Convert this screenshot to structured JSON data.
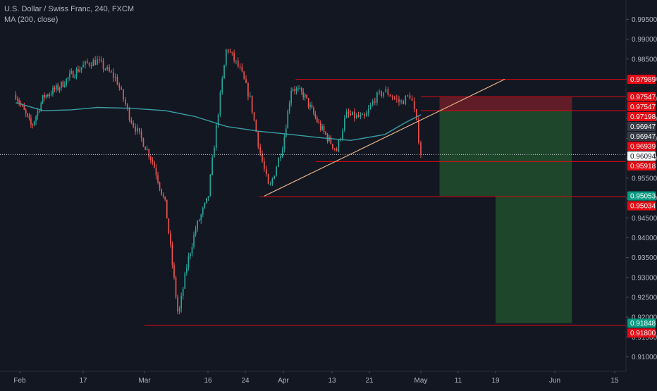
{
  "header": {
    "symbol_line": "U.S. Dollar / Swiss Franc, 240, FXCM",
    "indicator_line": "MA (200, close)"
  },
  "colors": {
    "background": "#131722",
    "bull": "#26a69a",
    "bear": "#ef5350",
    "ma": "#3a9ea5",
    "level_line": "#e50914",
    "trendline": "#e8b38a",
    "stop_zone": "#6e1f28",
    "target_zone": "#1f4b2c",
    "axis_text": "#b2b5be",
    "current_price_bg": "#ffffff"
  },
  "chart_data": {
    "type": "candlestick",
    "title": "U.S. Dollar / Swiss Franc, 240, FXCM",
    "indicator": "MA (200, close)",
    "x_tick_labels": [
      "Feb",
      "17",
      "Mar",
      "16",
      "24",
      "Apr",
      "13",
      "21",
      "May",
      "11",
      "19",
      "Jun",
      "15"
    ],
    "y_tick_labels": [
      "0.99500",
      "0.99000",
      "0.98500",
      "0.98000",
      "0.97500",
      "0.97000",
      "0.96500",
      "0.96000",
      "0.95500",
      "0.95000",
      "0.94500",
      "0.94000",
      "0.93500",
      "0.93000",
      "0.92500",
      "0.92000",
      "0.91500",
      "0.91000"
    ],
    "ylim": [
      0.9085,
      0.9972
    ],
    "grid": false,
    "price_path_keypoints": [
      [
        "Jan 31",
        0.976
      ],
      [
        "Feb 4",
        0.968
      ],
      [
        "Feb 7",
        0.9755
      ],
      [
        "Feb 11",
        0.978
      ],
      [
        "Feb 14",
        0.981
      ],
      [
        "Feb 18",
        0.984
      ],
      [
        "Feb 20",
        0.9845
      ],
      [
        "Feb 24",
        0.98
      ],
      [
        "Feb 27",
        0.97
      ],
      [
        "Mar 3",
        0.959
      ],
      [
        "Mar 6",
        0.948
      ],
      [
        "Mar 9",
        0.92
      ],
      [
        "Mar 11",
        0.933
      ],
      [
        "Mar 13",
        0.942
      ],
      [
        "Mar 16",
        0.95
      ],
      [
        "Mar 18",
        0.97
      ],
      [
        "Mar 20",
        0.988
      ],
      [
        "Mar 23",
        0.982
      ],
      [
        "Mar 25",
        0.975
      ],
      [
        "Mar 27",
        0.962
      ],
      [
        "Mar 29",
        0.952
      ],
      [
        "Apr 1",
        0.964
      ],
      [
        "Apr 3",
        0.978
      ],
      [
        "Apr 6",
        0.976
      ],
      [
        "Apr 8",
        0.972
      ],
      [
        "Apr 10",
        0.968
      ],
      [
        "Apr 14",
        0.962
      ],
      [
        "Apr 16",
        0.971
      ],
      [
        "Apr 20",
        0.97
      ],
      [
        "Apr 22",
        0.975
      ],
      [
        "Apr 24",
        0.977
      ],
      [
        "Apr 27",
        0.974
      ],
      [
        "Apr 29",
        0.976
      ],
      [
        "Apr 30",
        0.97
      ],
      [
        "May 1",
        0.9612
      ]
    ],
    "moving_average_keypoints": [
      [
        "Jan 31",
        0.974
      ],
      [
        "Feb 7",
        0.972
      ],
      [
        "Feb 14",
        0.9722
      ],
      [
        "Feb 20",
        0.9728
      ],
      [
        "Feb 27",
        0.9726
      ],
      [
        "Mar 6",
        0.972
      ],
      [
        "Mar 13",
        0.9705
      ],
      [
        "Mar 20",
        0.968
      ],
      [
        "Mar 27",
        0.9668
      ],
      [
        "Apr 3",
        0.966
      ],
      [
        "Apr 10",
        0.9652
      ],
      [
        "Apr 17",
        0.9645
      ],
      [
        "Apr 24",
        0.966
      ],
      [
        "Apr 28",
        0.969
      ],
      [
        "May 1",
        0.971
      ]
    ],
    "current_price": 0.96094,
    "horizontal_levels": [
      {
        "price": 0.97989,
        "from": "Apr 4"
      },
      {
        "price": 0.97547,
        "from": "May 1"
      },
      {
        "price": 0.97198,
        "from": "May 1"
      },
      {
        "price": 0.95918,
        "from": "Apr 9"
      },
      {
        "price": 0.95034,
        "from": "Mar 27"
      },
      {
        "price": 0.918,
        "from": "Mar 1"
      }
    ],
    "trendline": {
      "start": [
        "Mar 28",
        0.9505
      ],
      "end": [
        "May 21",
        0.9799
      ]
    },
    "position_tool": {
      "start": "May 6",
      "mid": "May 19",
      "end": "Jun 5",
      "entry": 0.97198,
      "stop": 0.97547,
      "target1": 0.95053,
      "target2": 0.91848
    },
    "price_labels": [
      {
        "text": "0.97989",
        "price": 0.97989,
        "bg": "#e50914",
        "fg": "#ffffff"
      },
      {
        "text": "0.97547",
        "price": 0.97547,
        "bg": "#e50914",
        "fg": "#ffffff"
      },
      {
        "text": "0.97547",
        "price": 0.97547,
        "bg": "#e50914",
        "fg": "#ffffff"
      },
      {
        "text": "0.97198",
        "price": 0.97198,
        "bg": "#e50914",
        "fg": "#ffffff"
      },
      {
        "text": "0.96947",
        "price": 0.96947,
        "bg": "#363a45",
        "fg": "#ffffff"
      },
      {
        "text": "0.96947",
        "price": 0.96947,
        "bg": "#363a45",
        "fg": "#ffffff"
      },
      {
        "text": "0.96939",
        "price": 0.96939,
        "bg": "#e50914",
        "fg": "#ffffff"
      },
      {
        "text": "0.96094",
        "price": 0.96094,
        "bg": "#ffffff",
        "fg": "#131722"
      },
      {
        "text": "0.95918",
        "price": 0.95918,
        "bg": "#e50914",
        "fg": "#ffffff"
      },
      {
        "text": "0.95053",
        "price": 0.95053,
        "bg": "#089981",
        "fg": "#ffffff"
      },
      {
        "text": "0.95034",
        "price": 0.95034,
        "bg": "#e50914",
        "fg": "#ffffff"
      },
      {
        "text": "0.91848",
        "price": 0.91848,
        "bg": "#089981",
        "fg": "#ffffff"
      },
      {
        "text": "0.91800",
        "price": 0.918,
        "bg": "#e50914",
        "fg": "#ffffff"
      }
    ]
  }
}
